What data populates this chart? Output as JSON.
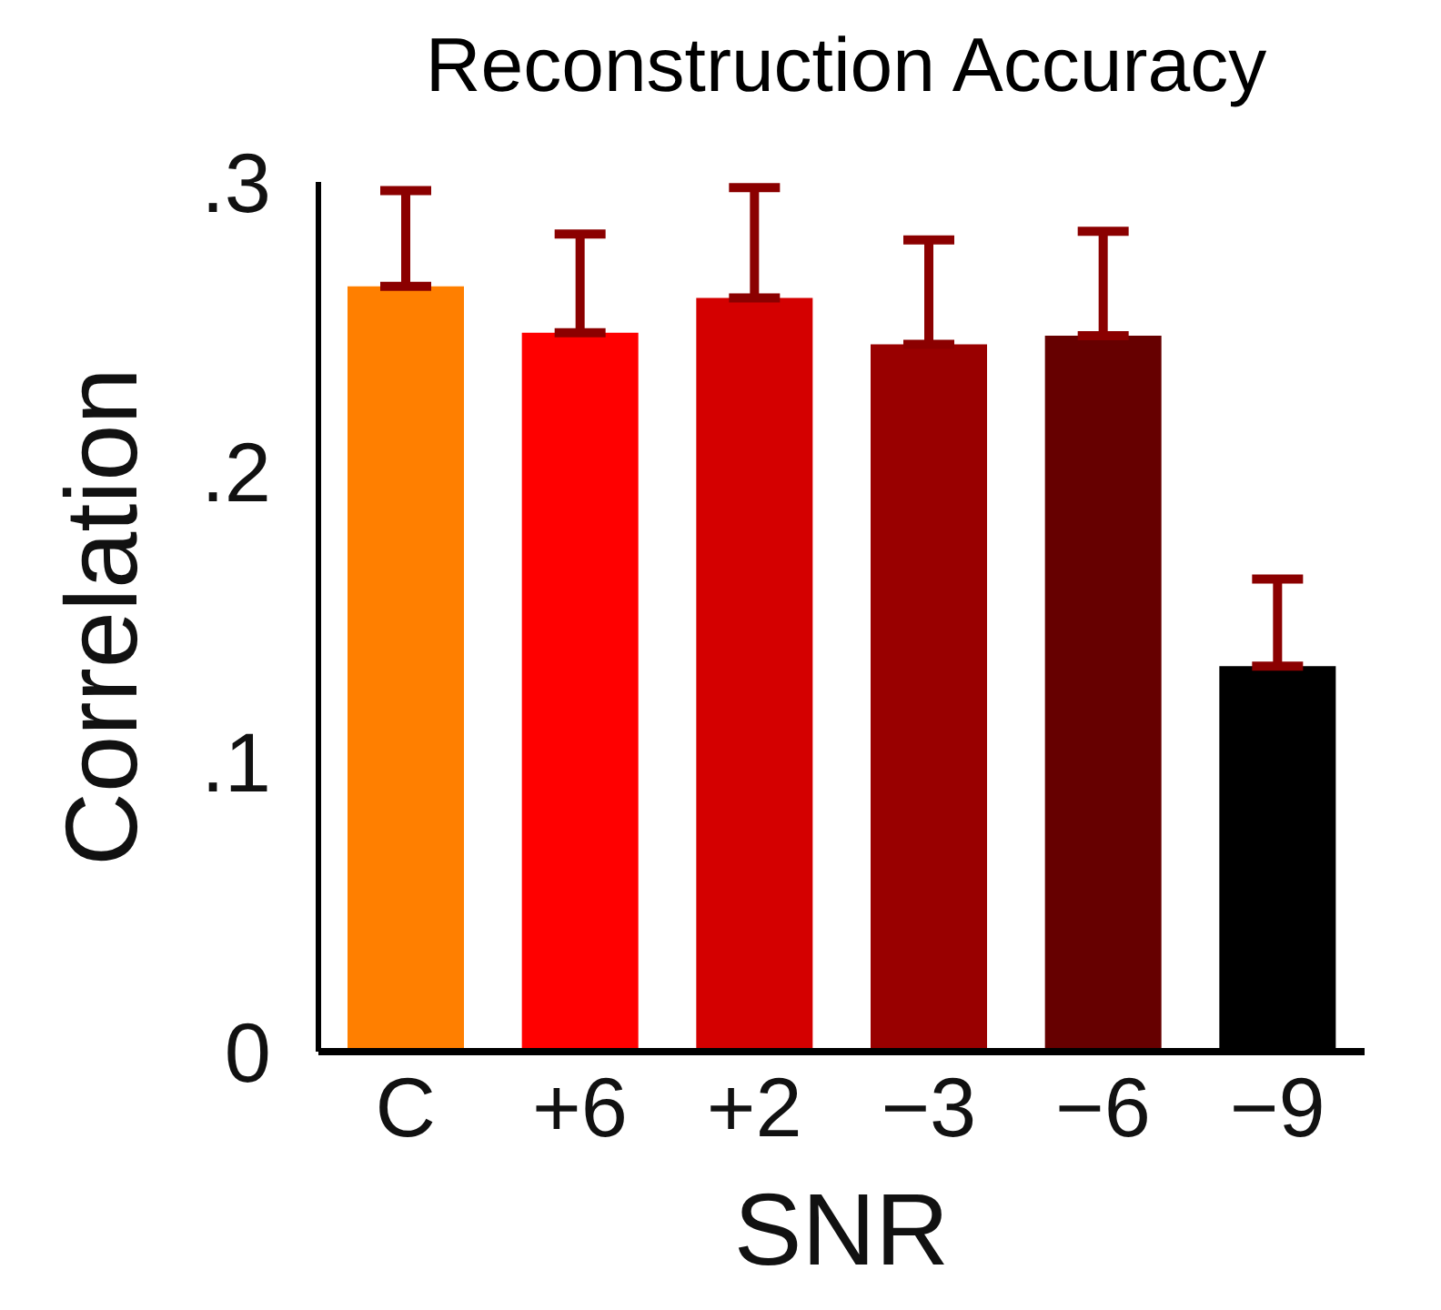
{
  "chart_data": {
    "type": "bar",
    "title": "Reconstruction Accuracy",
    "xlabel": "SNR",
    "ylabel": "Correlation",
    "categories": [
      "C",
      "+6",
      "+2",
      "−3",
      "−6",
      "−9"
    ],
    "values": [
      0.264,
      0.248,
      0.26,
      0.244,
      0.247,
      0.133
    ],
    "colors": [
      "#ff7f00",
      "#ff0000",
      "#d40000",
      "#990000",
      "#660000",
      "#000000"
    ],
    "errors": [
      [
        0.264,
        0.297
      ],
      [
        0.248,
        0.282
      ],
      [
        0.26,
        0.298
      ],
      [
        0.244,
        0.28
      ],
      [
        0.247,
        0.283
      ],
      [
        0.133,
        0.163
      ]
    ],
    "ylim": [
      0,
      0.3
    ],
    "yticks": [
      {
        "value": 0,
        "label": "0"
      },
      {
        "value": 0.1,
        "label": ".1"
      },
      {
        "value": 0.2,
        "label": ".2"
      },
      {
        "value": 0.3,
        "label": ".3"
      }
    ],
    "grid": false
  }
}
